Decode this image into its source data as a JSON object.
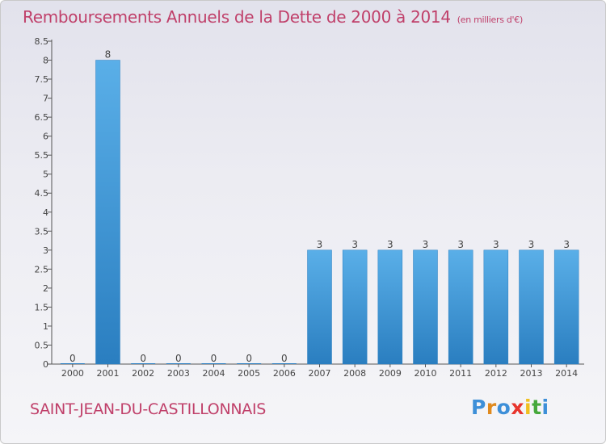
{
  "header": {
    "title": "Remboursements Annuels de la Dette de 2000 à 2014",
    "unit": "(en milliers d'€)"
  },
  "footer": {
    "commune": "SAINT-JEAN-DU-CASTILLONNAIS",
    "logo": [
      "P",
      "r",
      "o",
      "x",
      "i",
      "t",
      "i"
    ]
  },
  "chart_data": {
    "type": "bar",
    "title": "Remboursements Annuels de la Dette de 2000 à 2014",
    "xlabel": "",
    "ylabel": "",
    "categories": [
      "2000",
      "2001",
      "2002",
      "2003",
      "2004",
      "2005",
      "2006",
      "2007",
      "2008",
      "2009",
      "2010",
      "2011",
      "2012",
      "2013",
      "2014"
    ],
    "values": [
      0,
      8,
      0,
      0,
      0,
      0,
      0,
      3,
      3,
      3,
      3,
      3,
      3,
      3,
      3
    ],
    "ylim": [
      0,
      8.5
    ],
    "yticks": [
      "0",
      "0.5",
      "1",
      "1.5",
      "2",
      "2.5",
      "3",
      "3.5",
      "4",
      "4.5",
      "5",
      "5.5",
      "6",
      "6.5",
      "7",
      "7.5",
      "8",
      "8.5"
    ],
    "grid": false,
    "colors": {
      "bar_light": "#5aafe8",
      "bar_dark": "#2a7ec0"
    }
  }
}
